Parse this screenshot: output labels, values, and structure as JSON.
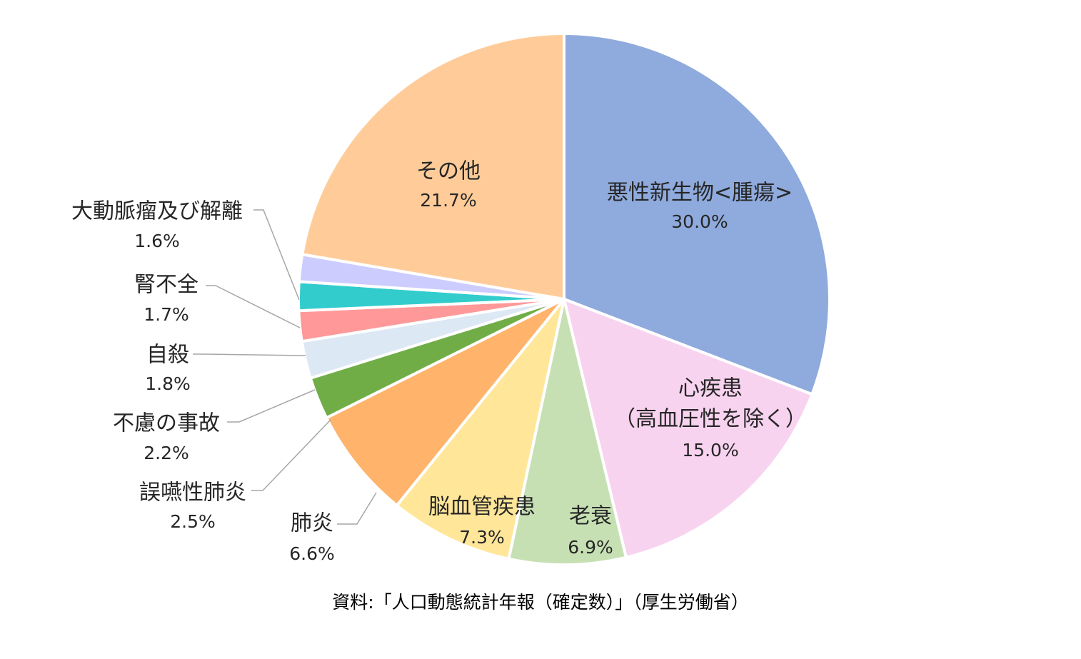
{
  "chart_data": {
    "type": "pie",
    "slices": [
      {
        "label": "悪性新生物<腫瘍>",
        "value": 30.0,
        "value_label": "30.0%",
        "color": "#8FAADC"
      },
      {
        "label": "心疾患",
        "label2": "（高血圧性を除く）",
        "value": 15.0,
        "value_label": "15.0%",
        "color": "#F8D3EF"
      },
      {
        "label": "老衰",
        "value": 6.9,
        "value_label": "6.9%",
        "color": "#C6E0B4"
      },
      {
        "label": "脳血管疾患",
        "value": 7.3,
        "value_label": "7.3%",
        "color": "#FFE699"
      },
      {
        "label": "肺炎",
        "value": 6.6,
        "value_label": "6.6%",
        "color": "#FFB36B"
      },
      {
        "label": "誤嚥性肺炎",
        "value": 2.5,
        "value_label": "2.5%",
        "color": "#70AD47"
      },
      {
        "label": "不慮の事故",
        "value": 2.2,
        "value_label": "2.2%",
        "color": "#DDE8F5"
      },
      {
        "label": "自殺",
        "value": 1.8,
        "value_label": "1.8%",
        "color": "#FF9999"
      },
      {
        "label": "腎不全",
        "value": 1.7,
        "value_label": "1.7%",
        "color": "#33CCCC"
      },
      {
        "label": "大動脈瘤及び解離",
        "value": 1.6,
        "value_label": "1.6%",
        "color": "#CCCCFF"
      },
      {
        "label": "その他",
        "value": 21.7,
        "value_label": "21.7%",
        "color": "#FFCC99"
      }
    ],
    "start_angle": "12 o'clock",
    "direction": "clockwise",
    "legend": "none"
  },
  "source_note": "資料:「人口動態統計年報（確定数）」（厚生労働省）"
}
